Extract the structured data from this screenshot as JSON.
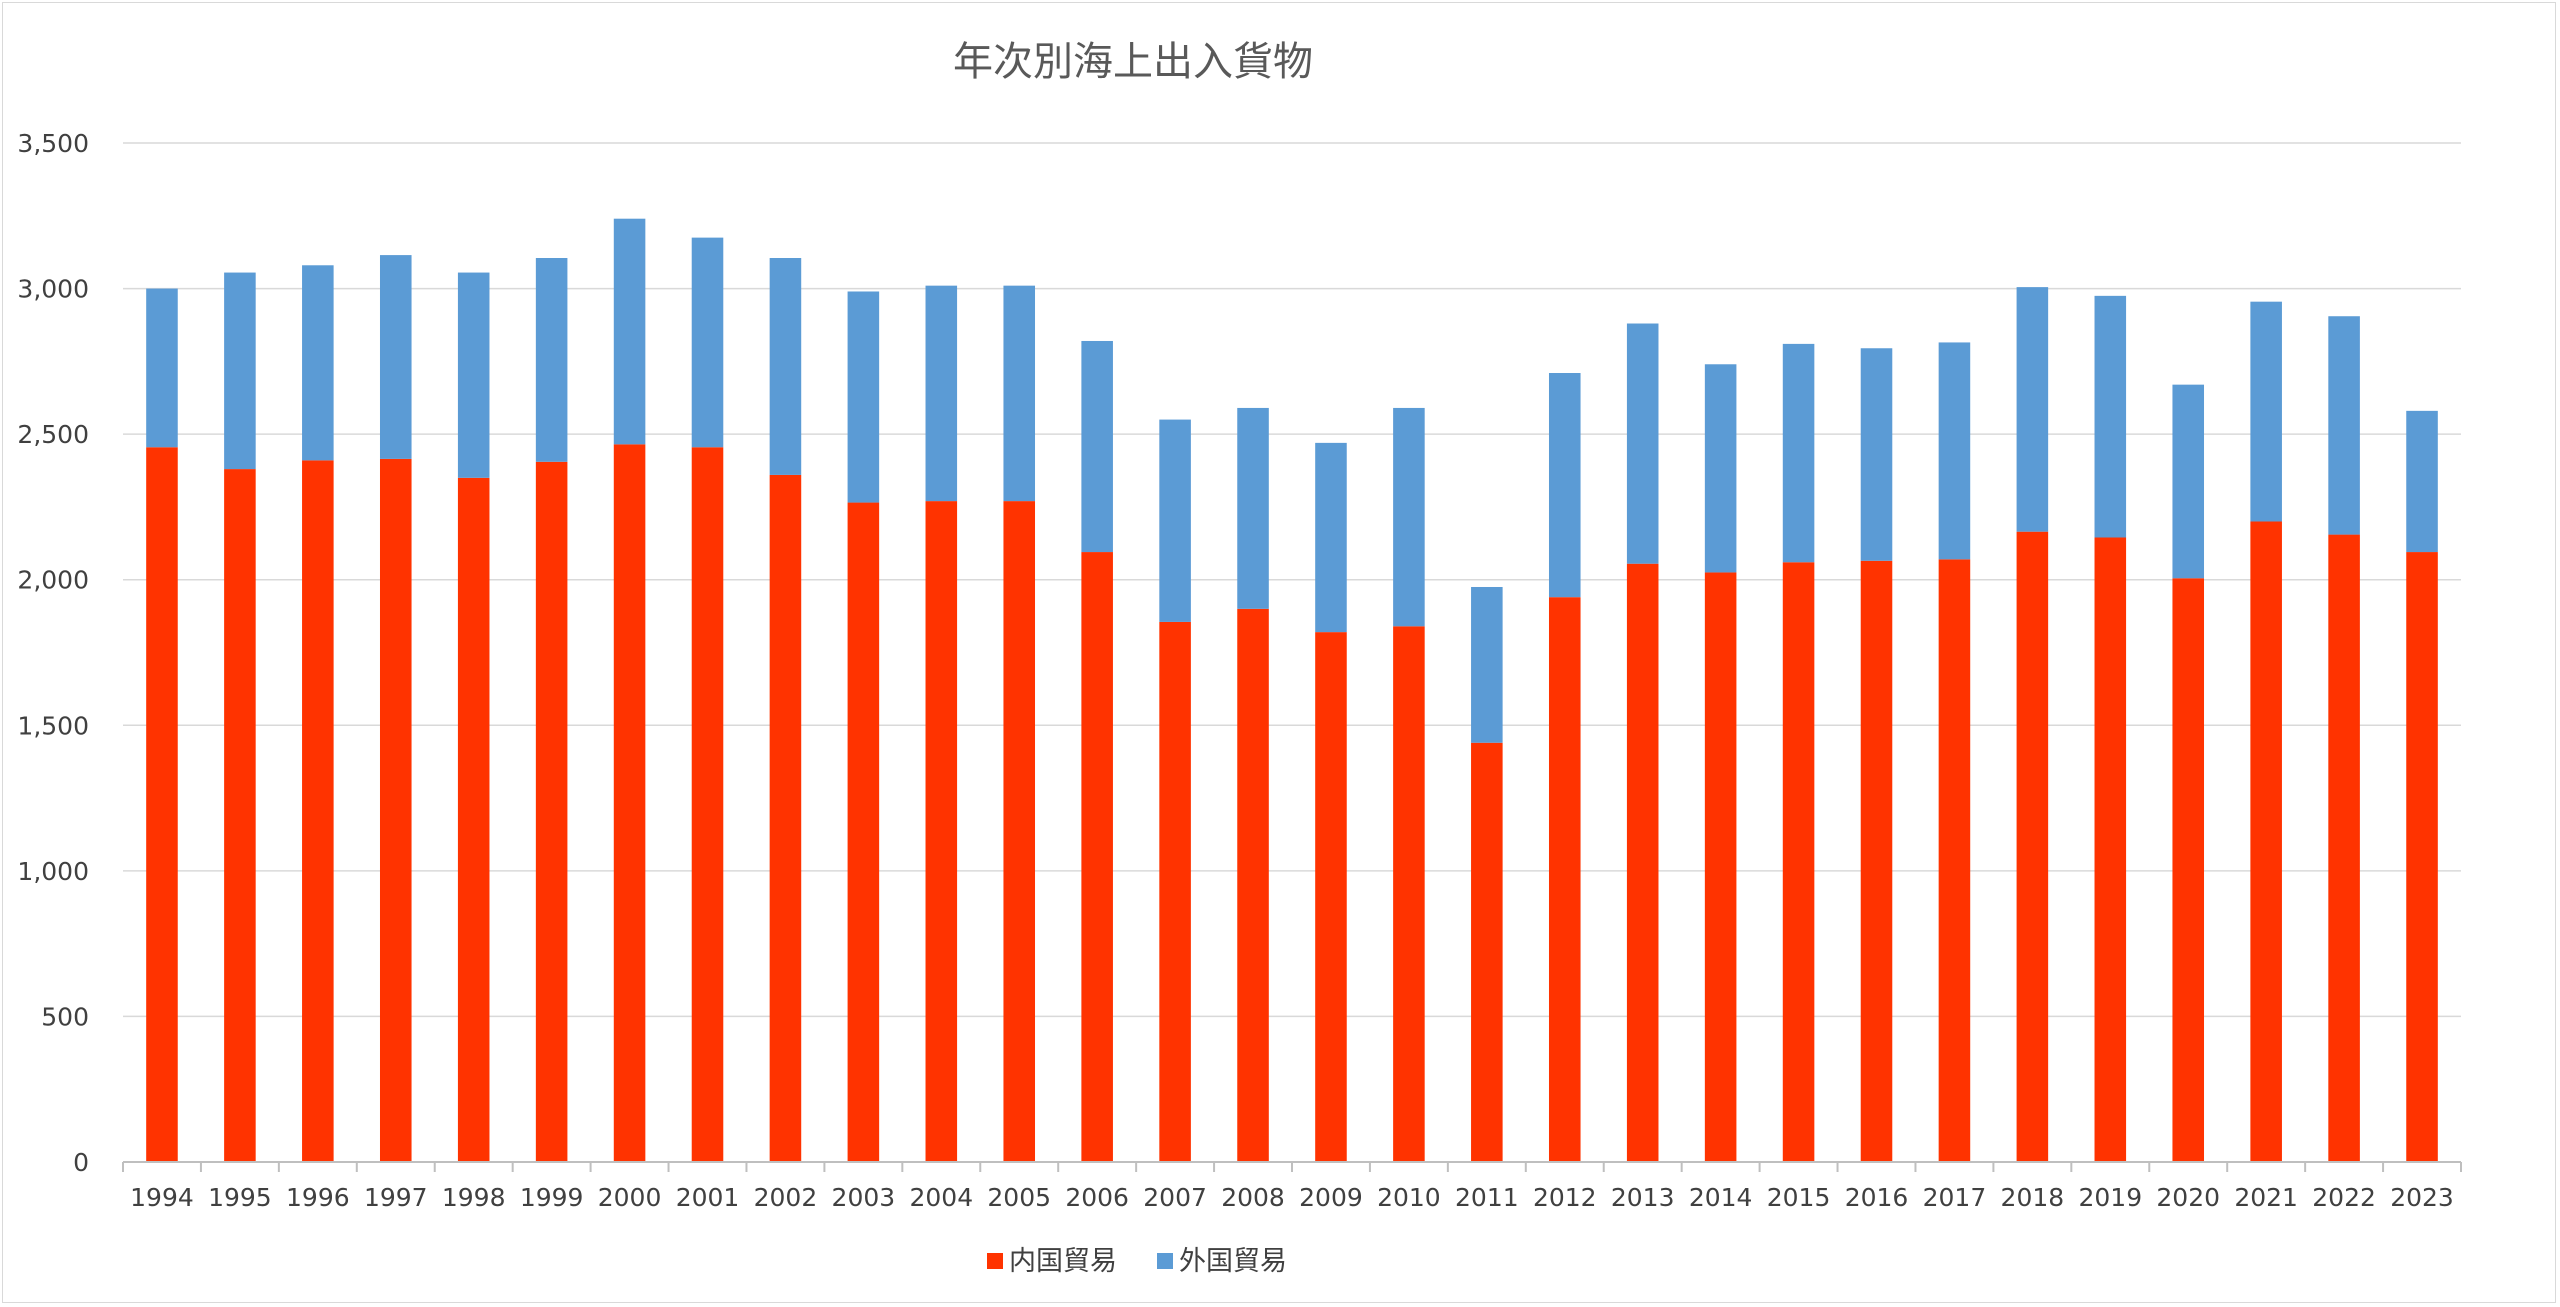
{
  "chart_data": {
    "type": "bar",
    "stacked": true,
    "title": "年次別海上出入貨物",
    "xlabel": "",
    "ylabel": "",
    "ylim": [
      0,
      3500
    ],
    "yticks": [
      0,
      500,
      1000,
      1500,
      2000,
      2500,
      3000,
      3500
    ],
    "ytick_labels": [
      "0",
      "500",
      "1,000",
      "1,500",
      "2,000",
      "2,500",
      "3,000",
      "3,500"
    ],
    "grid": true,
    "legend_position": "bottom",
    "categories": [
      "1994",
      "1995",
      "1996",
      "1997",
      "1998",
      "1999",
      "2000",
      "2001",
      "2002",
      "2003",
      "2004",
      "2005",
      "2006",
      "2007",
      "2008",
      "2009",
      "2010",
      "2011",
      "2012",
      "2013",
      "2014",
      "2015",
      "2016",
      "2017",
      "2018",
      "2019",
      "2020",
      "2021",
      "2022",
      "2023"
    ],
    "series": [
      {
        "name": "内国貿易",
        "color": "#ff3300",
        "values": [
          2455,
          2380,
          2410,
          2415,
          2350,
          2405,
          2465,
          2455,
          2360,
          2265,
          2270,
          2270,
          2095,
          1855,
          1900,
          1820,
          1840,
          1440,
          1940,
          2055,
          2025,
          2060,
          2065,
          2070,
          2165,
          2145,
          2005,
          2200,
          2155,
          2095
        ]
      },
      {
        "name": "外国貿易",
        "color": "#5b9bd5",
        "values": [
          545,
          675,
          670,
          700,
          705,
          700,
          775,
          720,
          745,
          725,
          740,
          740,
          725,
          695,
          690,
          650,
          750,
          535,
          770,
          825,
          715,
          750,
          730,
          745,
          840,
          830,
          665,
          755,
          750,
          485
        ]
      }
    ]
  }
}
